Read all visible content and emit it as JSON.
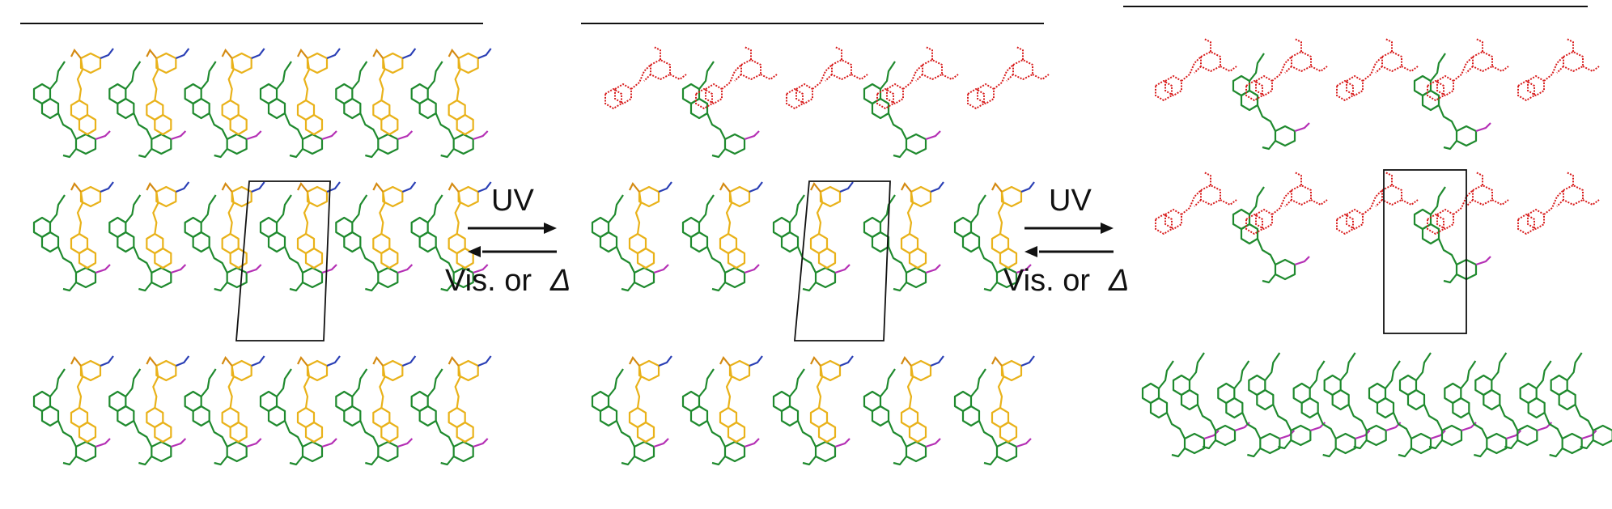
{
  "arrows": [
    {
      "forward_label": "UV",
      "reverse_label": "Vis. or",
      "reverse_symbol": "Δ"
    },
    {
      "forward_label": "UV",
      "reverse_label": "Vis. or",
      "reverse_symbol": "Δ"
    }
  ],
  "panels": [
    {
      "state": "initial",
      "yellow_rows": [
        0,
        1,
        2
      ],
      "red_rows": []
    },
    {
      "state": "partial",
      "yellow_rows": [
        1,
        2
      ],
      "red_rows": [
        0
      ]
    },
    {
      "state": "photoisomerized",
      "yellow_rows": [],
      "red_rows": [
        0,
        1
      ]
    }
  ],
  "colors": {
    "green": "#1f8a2e",
    "yellow": "#e9b21a",
    "orange": "#d48a12",
    "blue": "#2a3fb5",
    "magenta": "#b530b5",
    "red": "#d81c1c",
    "line": "#111111"
  }
}
